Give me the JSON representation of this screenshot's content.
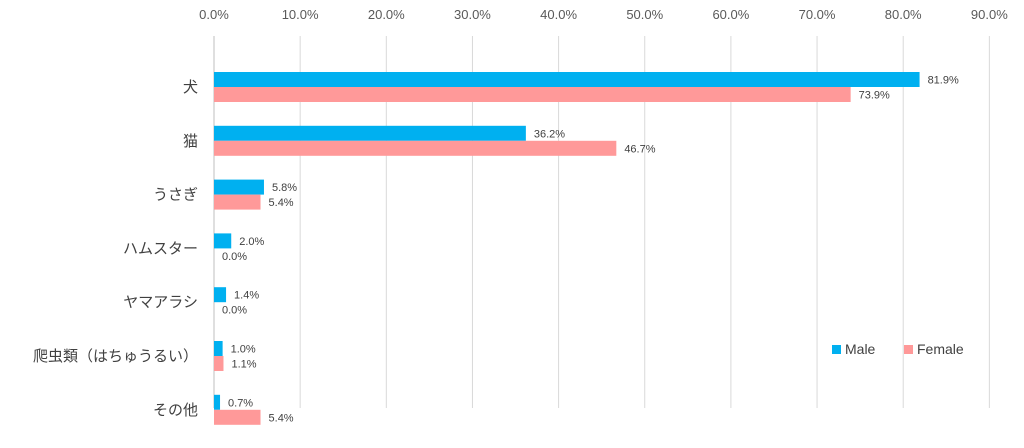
{
  "chart_data": {
    "type": "bar",
    "orientation": "horizontal",
    "categories": [
      "犬",
      "猫",
      "うさぎ",
      "ハムスター",
      "ヤマアラシ",
      "爬虫類（はちゅうるい）",
      "その他"
    ],
    "series": [
      {
        "name": "Male",
        "color": "#00B0F0",
        "values": [
          81.9,
          36.2,
          5.8,
          2.0,
          1.4,
          1.0,
          0.7
        ],
        "labels": [
          "81.9%",
          "36.2%",
          "5.8%",
          "2.0%",
          "1.4%",
          "1.0%",
          "0.7%"
        ]
      },
      {
        "name": "Female",
        "color": "#FF9999",
        "values": [
          73.9,
          46.7,
          5.4,
          0.0,
          0.0,
          1.1,
          5.4
        ],
        "labels": [
          "73.9%",
          "46.7%",
          "5.4%",
          "0.0%",
          "0.0%",
          "1.1%",
          "5.4%"
        ]
      }
    ],
    "xaxis": {
      "position": "top",
      "ticks": [
        "0.0%",
        "10.0%",
        "20.0%",
        "30.0%",
        "40.0%",
        "50.0%",
        "60.0%",
        "70.0%",
        "80.0%",
        "90.0%"
      ],
      "range": [
        0,
        90
      ]
    },
    "grid": true,
    "legend": {
      "position": "bottom-right",
      "entries": [
        "Male",
        "Female"
      ]
    }
  }
}
